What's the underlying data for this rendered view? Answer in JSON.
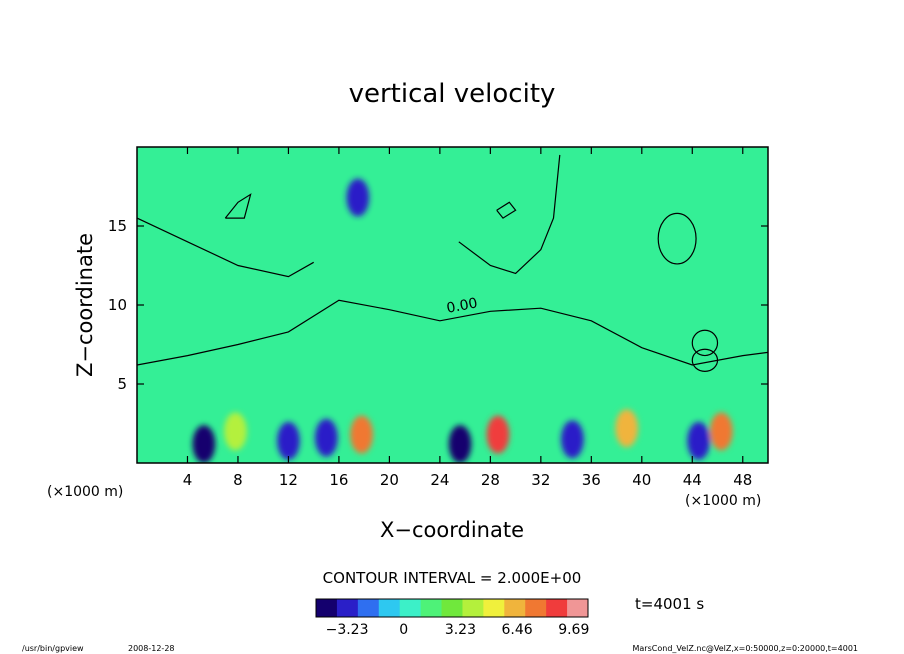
{
  "chart_data": {
    "type": "heatmap",
    "title": "vertical velocity",
    "xlabel": "X−coordinate",
    "ylabel": "Z−coordinate",
    "x_unit_left": "(×1000 m)",
    "x_unit_right": "(×1000 m)",
    "xlim": [
      0,
      50
    ],
    "ylim": [
      0,
      20
    ],
    "x_ticks": [
      4,
      8,
      12,
      16,
      20,
      24,
      28,
      32,
      36,
      40,
      44,
      48
    ],
    "y_ticks": [
      5,
      10,
      15
    ],
    "contour_interval_text": "CONTOUR INTERVAL = 2.000E+00",
    "contour_label": "0.00",
    "colorbar": {
      "min": -5.0,
      "max": 10.5,
      "tick_values": [
        -3.23,
        0,
        3.23,
        6.46,
        9.69
      ],
      "tick_labels": [
        "−3.23",
        "0",
        "3.23",
        "6.46",
        "9.69"
      ],
      "colors": [
        "#14006e",
        "#2a1fc8",
        "#2f6ff0",
        "#2ec8f0",
        "#3cf0c8",
        "#4ef278",
        "#70e83c",
        "#b4f03c",
        "#f0f03c",
        "#f0b43c",
        "#f07832",
        "#f03c3c",
        "#f09696"
      ]
    },
    "cells": [
      {
        "x": 5.3,
        "z": 1.2,
        "w": -5.0
      },
      {
        "x": 12.0,
        "z": 1.4,
        "w": -3.5
      },
      {
        "x": 15.0,
        "z": 1.6,
        "w": -3.3
      },
      {
        "x": 25.6,
        "z": 1.2,
        "w": -5.0
      },
      {
        "x": 34.5,
        "z": 1.5,
        "w": -3.0
      },
      {
        "x": 44.5,
        "z": 1.4,
        "w": -3.4
      },
      {
        "x": 17.5,
        "z": 16.8,
        "w": -3.5
      },
      {
        "x": 17.8,
        "z": 1.8,
        "w": 8.0
      },
      {
        "x": 28.6,
        "z": 1.8,
        "w": 8.5
      },
      {
        "x": 38.8,
        "z": 2.2,
        "w": 5.8
      },
      {
        "x": 46.3,
        "z": 2.0,
        "w": 7.0
      },
      {
        "x": 7.8,
        "z": 2.0,
        "w": 4.0
      }
    ],
    "contours": [
      {
        "label": "0.00",
        "points": [
          [
            0,
            6.2
          ],
          [
            4,
            6.8
          ],
          [
            8,
            7.5
          ],
          [
            12,
            8.3
          ],
          [
            16,
            10.3
          ],
          [
            20,
            9.7
          ],
          [
            24,
            9.0
          ],
          [
            28,
            9.6
          ],
          [
            32,
            9.8
          ],
          [
            36,
            9.0
          ],
          [
            40,
            7.3
          ],
          [
            44,
            6.2
          ],
          [
            48,
            6.8
          ],
          [
            50,
            7.0
          ]
        ]
      },
      {
        "label": "",
        "points": [
          [
            0,
            15.5
          ],
          [
            4,
            14.0
          ],
          [
            8,
            12.5
          ],
          [
            12,
            11.8
          ],
          [
            14,
            12.7
          ]
        ]
      },
      {
        "label": "",
        "points": [
          [
            25.5,
            14.0
          ],
          [
            28,
            12.5
          ],
          [
            30,
            12.0
          ],
          [
            32,
            13.5
          ],
          [
            33,
            15.5
          ],
          [
            33.5,
            19.5
          ]
        ]
      },
      {
        "label": "",
        "points": [
          [
            7,
            15.5
          ],
          [
            8,
            16.5
          ],
          [
            9,
            17.0
          ],
          [
            8.5,
            15.5
          ],
          [
            7,
            15.5
          ]
        ]
      },
      {
        "label": "",
        "points": [
          [
            28.5,
            16.0
          ],
          [
            29.5,
            16.5
          ],
          [
            30,
            16.0
          ],
          [
            29,
            15.5
          ],
          [
            28.5,
            16.0
          ]
        ]
      }
    ],
    "closed_contours": [
      {
        "x": 42.8,
        "z": 14.2,
        "rx": 1.5,
        "rz": 1.6
      },
      {
        "x": 45.0,
        "z": 6.5,
        "rx": 1.0,
        "rz": 0.7
      },
      {
        "x": 45.0,
        "z": 7.6,
        "rx": 1.0,
        "rz": 0.8
      }
    ],
    "grid": false,
    "legend": "bottom"
  },
  "time_label": "t=4001 s",
  "footer": {
    "program": "/usr/bin/gpview",
    "date": "2008-12-28",
    "source": "MarsCond_VelZ.nc@VelZ,x=0:50000,z=0:20000,t=4001"
  }
}
